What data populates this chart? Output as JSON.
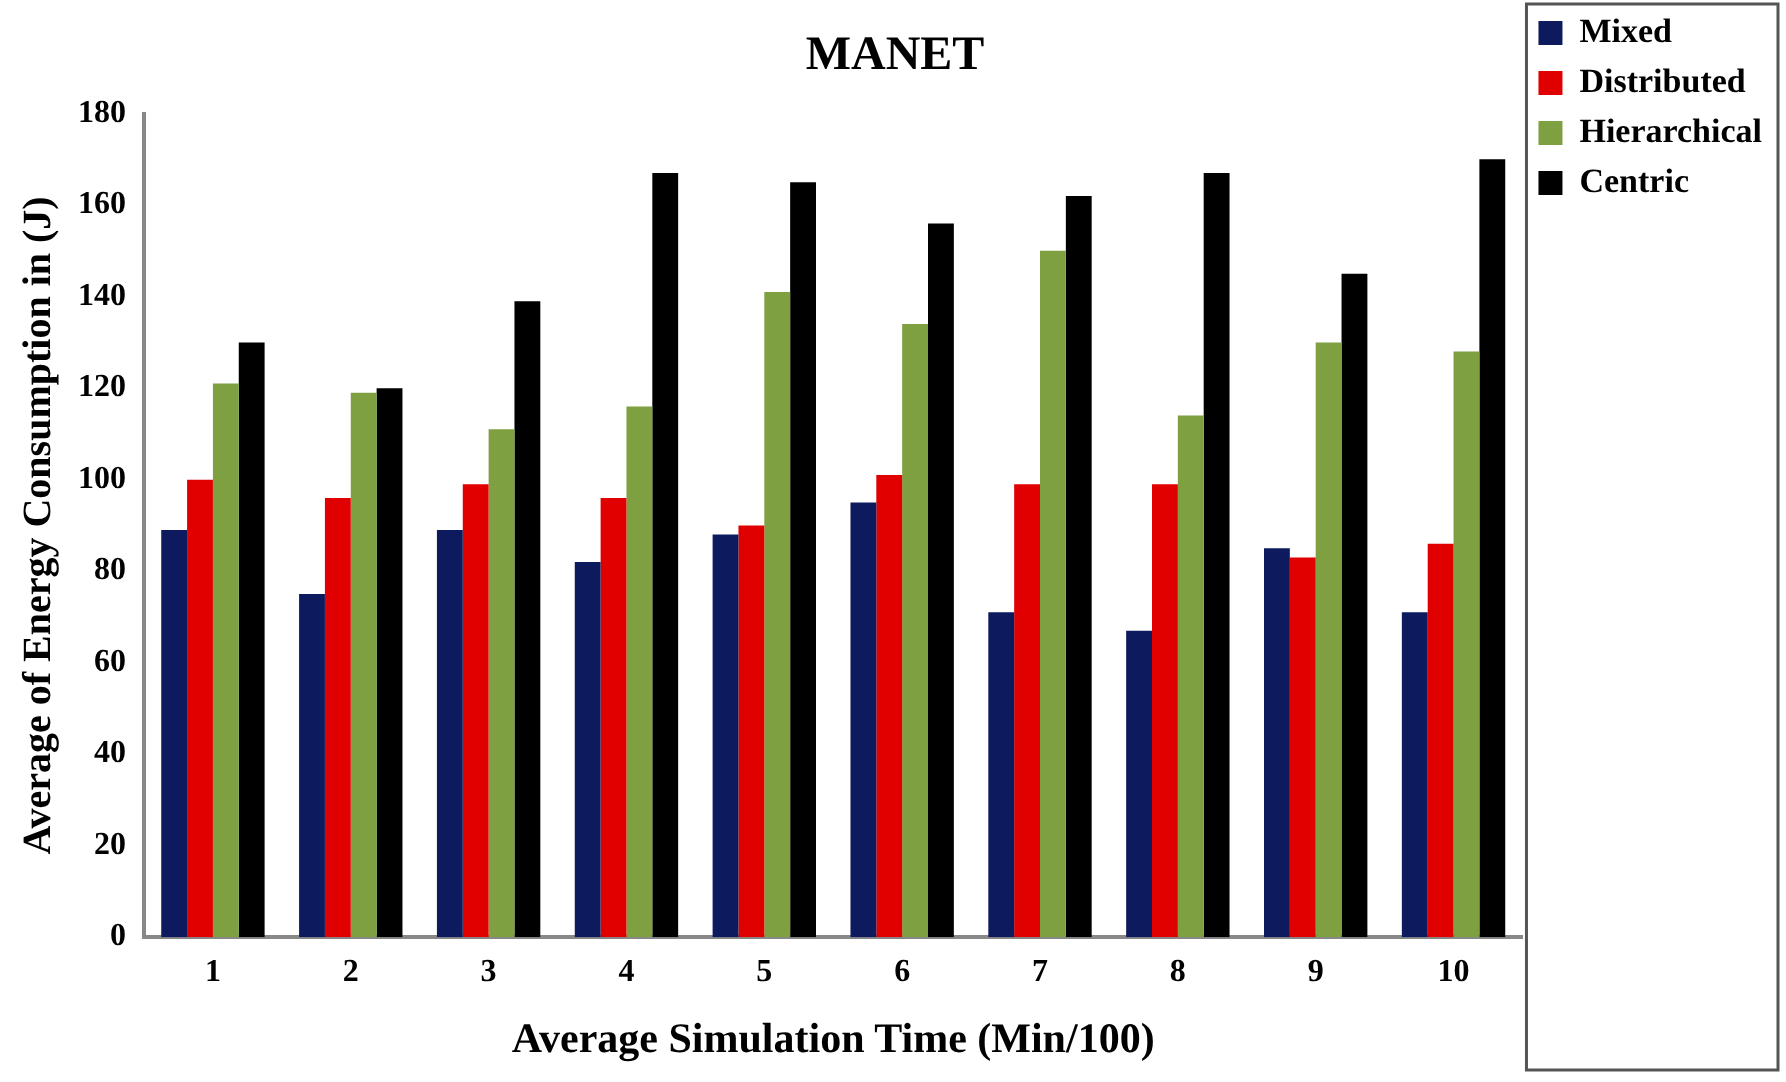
{
  "chart_data": {
    "type": "bar",
    "title": "MANET",
    "xlabel": "Average Simulation Time (Min/100)",
    "ylabel": "Average of Energy Consumption in (J)",
    "categories": [
      "1",
      "2",
      "3",
      "4",
      "5",
      "6",
      "7",
      "8",
      "9",
      "10"
    ],
    "series": [
      {
        "name": "Mixed",
        "color": "#0d1a5e",
        "values": [
          89,
          75,
          89,
          82,
          88,
          95,
          71,
          67,
          85,
          71
        ]
      },
      {
        "name": "Distributed",
        "color": "#e00000",
        "values": [
          100,
          96,
          99,
          96,
          90,
          101,
          99,
          99,
          83,
          86
        ]
      },
      {
        "name": "Hierarchical",
        "color": "#7fa040",
        "values": [
          121,
          119,
          111,
          116,
          141,
          134,
          150,
          114,
          130,
          128
        ]
      },
      {
        "name": "Centric",
        "color": "#000000",
        "values": [
          130,
          120,
          139,
          167,
          165,
          156,
          162,
          167,
          145,
          170
        ]
      }
    ],
    "ylim": [
      0,
      180
    ],
    "yticks": [
      0,
      20,
      40,
      60,
      80,
      100,
      120,
      140,
      160,
      180
    ],
    "grid": false,
    "legend": "top right"
  }
}
